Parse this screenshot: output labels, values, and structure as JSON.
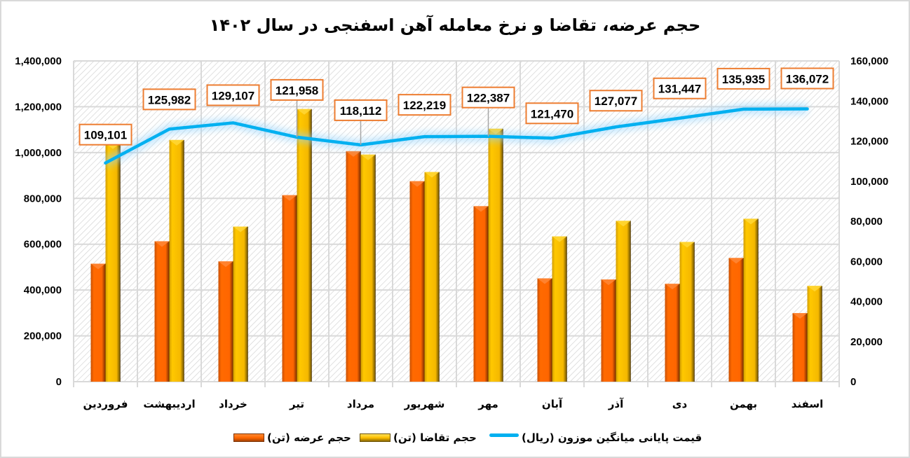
{
  "title": "حجم عرضه، تقاضا و نرخ معامله آهن اسفنجی در سال ۱۴۰۲",
  "legend": {
    "supply": "حجم عرضه (تن)",
    "demand": "حجم تقاضا (تن)",
    "price": "قیمت پایانی میانگین موزون (ریال)"
  },
  "colors": {
    "supply": "#FF6600",
    "demand": "#FFC000",
    "price": "#00B0F0",
    "label_border": "#ED7D31",
    "grid": "#D9D9D9"
  },
  "left_axis": {
    "ticks": [
      "0",
      "200,000",
      "400,000",
      "600,000",
      "800,000",
      "1,000,000",
      "1,200,000",
      "1,400,000"
    ]
  },
  "right_axis": {
    "ticks": [
      "0",
      "20,000",
      "40,000",
      "60,000",
      "80,000",
      "100,000",
      "120,000",
      "140,000",
      "160,000"
    ]
  },
  "chart_data": {
    "type": "bar",
    "title": "حجم عرضه، تقاضا و نرخ معامله آهن اسفنجی در سال ۱۴۰۲",
    "xlabel": "",
    "ylabel": "",
    "categories": [
      "فروردین",
      "اردیبهشت",
      "خرداد",
      "تیر",
      "مرداد",
      "شهریور",
      "مهر",
      "آبان",
      "آذر",
      "دی",
      "بهمن",
      "اسفند"
    ],
    "series": [
      {
        "name": "حجم عرضه (تن)",
        "type": "bar",
        "axis": "left",
        "color": "#FF6600",
        "values": [
          515000,
          613000,
          525000,
          814000,
          1006000,
          875000,
          766000,
          451000,
          446000,
          427000,
          540000,
          299000
        ]
      },
      {
        "name": "حجم تقاضا (تن)",
        "type": "bar",
        "axis": "left",
        "color": "#FFC000",
        "values": [
          1040000,
          1055000,
          677000,
          1190000,
          991000,
          915000,
          1104000,
          634000,
          702000,
          610000,
          711000,
          418000
        ]
      },
      {
        "name": "قیمت پایانی میانگین موزون (ریال)",
        "type": "line",
        "axis": "right",
        "color": "#00B0F0",
        "values": [
          109101,
          125982,
          129107,
          121958,
          118112,
          122219,
          122387,
          121470,
          127077,
          131447,
          135935,
          136072
        ],
        "labels": [
          "109,101",
          "125,982",
          "129,107",
          "121,958",
          "118,112",
          "122,219",
          "122,387",
          "121,470",
          "127,077",
          "131,447",
          "135,935",
          "136,072"
        ]
      }
    ],
    "ylim": [
      0,
      1400000
    ],
    "ylim_right": [
      0,
      160000
    ],
    "grid": true,
    "legend_position": "bottom"
  }
}
